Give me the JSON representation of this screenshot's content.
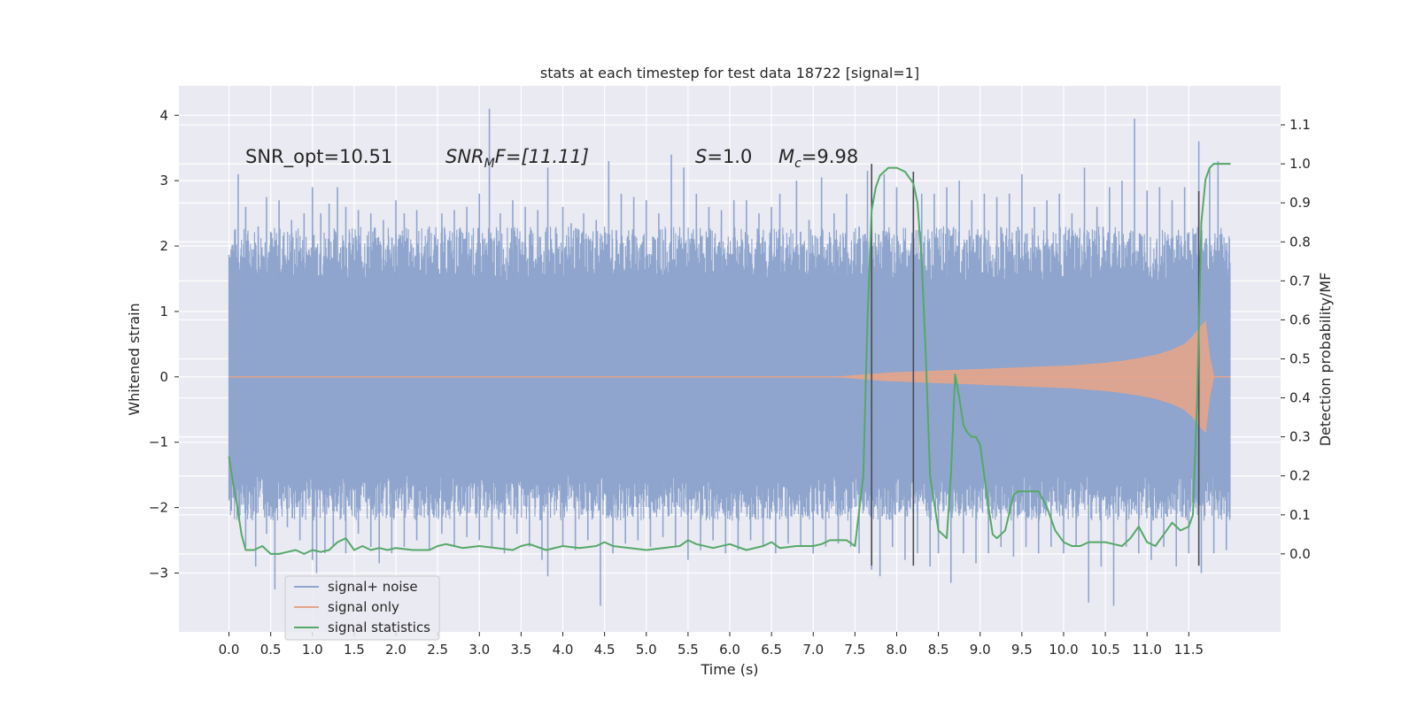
{
  "chart_data": {
    "type": "line",
    "title": "stats at each timestep for test data 18722 [signal=1]",
    "xlabel": "Time (s)",
    "ylabel_left": "Whitened strain",
    "ylabel_right": "Detection probability/MF",
    "xlim": [
      -0.6,
      12.6
    ],
    "ylim_left": [
      -3.9,
      4.45
    ],
    "ylim_right": [
      -0.2,
      1.2
    ],
    "x_ticks": [
      0.0,
      0.5,
      1.0,
      1.5,
      2.0,
      2.5,
      3.0,
      3.5,
      4.0,
      4.5,
      5.0,
      5.5,
      6.0,
      6.5,
      7.0,
      7.5,
      8.0,
      8.5,
      9.0,
      9.5,
      10.0,
      10.5,
      11.0,
      11.5
    ],
    "x_tick_labels": [
      "0.0",
      "0.5",
      "1.0",
      "1.5",
      "2.0",
      "2.5",
      "3.0",
      "3.5",
      "4.0",
      "4.5",
      "5.0",
      "5.5",
      "6.0",
      "6.5",
      "7.0",
      "7.5",
      "8.0",
      "8.5",
      "9.0",
      "9.5",
      "10.0",
      "10.5",
      "11.0",
      "11.5"
    ],
    "y_left_ticks": [
      -3,
      -2,
      -1,
      0,
      1,
      2,
      3,
      4
    ],
    "y_left_tick_labels": [
      "−3",
      "−2",
      "−1",
      "0",
      "1",
      "2",
      "3",
      "4"
    ],
    "y_right_ticks": [
      0.0,
      0.1,
      0.2,
      0.3,
      0.4,
      0.5,
      0.6,
      0.7,
      0.8,
      0.9,
      1.0,
      1.1
    ],
    "y_right_tick_labels": [
      "0.0",
      "0.1",
      "0.2",
      "0.3",
      "0.4",
      "0.5",
      "0.6",
      "0.7",
      "0.8",
      "0.9",
      "1.0",
      "1.1"
    ],
    "grid": true,
    "legend_position": "lower-left",
    "legend": [
      {
        "label": "signal+ noise",
        "color": "#8fa5cd"
      },
      {
        "label": "signal only",
        "color": "#e3a58c"
      },
      {
        "label": "signal statistics",
        "color": "#55a868"
      }
    ],
    "annotations": {
      "snr_opt": "SNR_opt=10.51",
      "snr_mf_label": "SNR",
      "snr_mf_sub": "M",
      "snr_mf_rest": "F=[11.11]",
      "s_label": "S",
      "s_value": "=1.0",
      "mc_label": "M",
      "mc_sub": "c",
      "mc_value": "=9.98"
    },
    "noise_series": {
      "name": "signal+ noise",
      "color": "#8fa5cd",
      "x_start": 0.0,
      "x_end": 12.0,
      "band_low": -1.5,
      "band_high": 1.45,
      "spikes_up": [
        [
          0.07,
          2.1
        ],
        [
          0.11,
          3.1
        ],
        [
          0.2,
          2.6
        ],
        [
          0.35,
          2.3
        ],
        [
          0.45,
          2.75
        ],
        [
          0.6,
          2.7
        ],
        [
          0.75,
          2.4
        ],
        [
          0.9,
          2.5
        ],
        [
          1.0,
          2.9
        ],
        [
          1.1,
          2.5
        ],
        [
          1.2,
          2.65
        ],
        [
          1.3,
          2.9
        ],
        [
          1.4,
          2.6
        ],
        [
          1.55,
          2.55
        ],
        [
          1.7,
          2.5
        ],
        [
          1.85,
          2.4
        ],
        [
          2.0,
          2.7
        ],
        [
          2.1,
          2.5
        ],
        [
          2.25,
          2.55
        ],
        [
          2.4,
          2.3
        ],
        [
          2.55,
          2.5
        ],
        [
          2.7,
          2.55
        ],
        [
          2.85,
          2.6
        ],
        [
          3.0,
          2.8
        ],
        [
          3.12,
          4.1
        ],
        [
          3.25,
          2.5
        ],
        [
          3.4,
          2.7
        ],
        [
          3.55,
          2.6
        ],
        [
          3.7,
          2.55
        ],
        [
          3.82,
          3.2
        ],
        [
          4.0,
          2.6
        ],
        [
          4.1,
          2.35
        ],
        [
          4.25,
          2.5
        ],
        [
          4.4,
          2.4
        ],
        [
          4.55,
          3.3
        ],
        [
          4.7,
          2.8
        ],
        [
          4.85,
          2.75
        ],
        [
          5.0,
          2.7
        ],
        [
          5.15,
          2.5
        ],
        [
          5.3,
          3.4
        ],
        [
          5.45,
          3.2
        ],
        [
          5.6,
          2.8
        ],
        [
          5.75,
          2.6
        ],
        [
          5.9,
          2.55
        ],
        [
          6.05,
          2.7
        ],
        [
          6.2,
          2.7
        ],
        [
          6.35,
          2.5
        ],
        [
          6.5,
          2.6
        ],
        [
          6.6,
          2.8
        ],
        [
          6.8,
          3.0
        ],
        [
          6.95,
          2.4
        ],
        [
          7.1,
          3.05
        ],
        [
          7.25,
          2.5
        ],
        [
          7.4,
          2.8
        ],
        [
          7.55,
          2.3
        ],
        [
          7.65,
          3.15
        ],
        [
          7.85,
          3.1
        ],
        [
          8.0,
          2.9
        ],
        [
          8.2,
          3.0
        ],
        [
          8.3,
          2.8
        ],
        [
          8.45,
          2.8
        ],
        [
          8.6,
          2.9
        ],
        [
          8.75,
          3.0
        ],
        [
          8.9,
          2.7
        ],
        [
          9.05,
          2.8
        ],
        [
          9.2,
          2.75
        ],
        [
          9.35,
          2.8
        ],
        [
          9.5,
          3.1
        ],
        [
          9.65,
          2.6
        ],
        [
          9.8,
          2.7
        ],
        [
          9.95,
          2.8
        ],
        [
          10.1,
          2.5
        ],
        [
          10.25,
          3.2
        ],
        [
          10.4,
          2.6
        ],
        [
          10.55,
          2.9
        ],
        [
          10.7,
          3.0
        ],
        [
          10.85,
          3.95
        ],
        [
          11.0,
          2.85
        ],
        [
          11.15,
          2.9
        ],
        [
          11.3,
          2.7
        ],
        [
          11.45,
          2.9
        ],
        [
          11.62,
          3.6
        ],
        [
          11.75,
          3.2
        ],
        [
          11.85,
          3.3
        ],
        [
          11.98,
          1.9
        ]
      ],
      "spikes_down": [
        [
          0.05,
          -1.85
        ],
        [
          0.12,
          -2.2
        ],
        [
          0.2,
          -2.6
        ],
        [
          0.32,
          -2.9
        ],
        [
          0.45,
          -2.4
        ],
        [
          0.55,
          -3.25
        ],
        [
          0.7,
          -2.3
        ],
        [
          0.85,
          -2.5
        ],
        [
          1.0,
          -2.8
        ],
        [
          1.05,
          -3.0
        ],
        [
          1.15,
          -2.7
        ],
        [
          1.25,
          -2.6
        ],
        [
          1.4,
          -2.7
        ],
        [
          1.55,
          -2.4
        ],
        [
          1.7,
          -2.6
        ],
        [
          1.8,
          -2.85
        ],
        [
          1.95,
          -2.7
        ],
        [
          2.1,
          -2.6
        ],
        [
          2.25,
          -2.5
        ],
        [
          2.4,
          -2.65
        ],
        [
          2.55,
          -2.4
        ],
        [
          2.7,
          -2.6
        ],
        [
          2.85,
          -2.45
        ],
        [
          3.0,
          -2.5
        ],
        [
          3.15,
          -2.6
        ],
        [
          3.3,
          -2.7
        ],
        [
          3.45,
          -2.4
        ],
        [
          3.6,
          -2.6
        ],
        [
          3.75,
          -2.8
        ],
        [
          3.82,
          -3.05
        ],
        [
          4.0,
          -2.6
        ],
        [
          4.15,
          -2.65
        ],
        [
          4.3,
          -2.5
        ],
        [
          4.45,
          -3.5
        ],
        [
          4.6,
          -2.7
        ],
        [
          4.75,
          -2.55
        ],
        [
          4.9,
          -2.5
        ],
        [
          5.05,
          -2.6
        ],
        [
          5.2,
          -2.45
        ],
        [
          5.35,
          -2.6
        ],
        [
          5.5,
          -2.8
        ],
        [
          5.65,
          -2.65
        ],
        [
          5.8,
          -2.5
        ],
        [
          5.95,
          -2.7
        ],
        [
          6.1,
          -2.65
        ],
        [
          6.25,
          -2.5
        ],
        [
          6.4,
          -2.6
        ],
        [
          6.55,
          -2.7
        ],
        [
          6.7,
          -2.55
        ],
        [
          6.85,
          -2.6
        ],
        [
          7.0,
          -2.7
        ],
        [
          7.15,
          -2.6
        ],
        [
          7.3,
          -2.55
        ],
        [
          7.45,
          -2.6
        ],
        [
          7.55,
          -2.7
        ],
        [
          7.7,
          -2.95
        ],
        [
          7.8,
          -3.05
        ],
        [
          7.95,
          -2.6
        ],
        [
          8.1,
          -2.8
        ],
        [
          8.25,
          -2.7
        ],
        [
          8.4,
          -2.9
        ],
        [
          8.5,
          -2.7
        ],
        [
          8.65,
          -3.15
        ],
        [
          8.8,
          -2.7
        ],
        [
          8.95,
          -2.85
        ],
        [
          9.1,
          -2.7
        ],
        [
          9.25,
          -2.6
        ],
        [
          9.4,
          -2.75
        ],
        [
          9.55,
          -2.6
        ],
        [
          9.7,
          -2.7
        ],
        [
          9.85,
          -2.6
        ],
        [
          10.0,
          -2.7
        ],
        [
          10.15,
          -2.6
        ],
        [
          10.3,
          -3.45
        ],
        [
          10.45,
          -2.9
        ],
        [
          10.6,
          -3.5
        ],
        [
          10.75,
          -2.6
        ],
        [
          10.9,
          -2.7
        ],
        [
          11.05,
          -2.8
        ],
        [
          11.2,
          -2.6
        ],
        [
          11.35,
          -2.9
        ],
        [
          11.5,
          -2.7
        ],
        [
          11.65,
          -3.0
        ],
        [
          11.8,
          -2.7
        ],
        [
          11.95,
          -2.65
        ]
      ]
    },
    "signal_series": {
      "name": "signal only",
      "color": "#e3a58c",
      "envelope": {
        "x": [
          7.3,
          7.5,
          7.7,
          7.9,
          8.1,
          8.3,
          8.5,
          8.7,
          8.9,
          9.1,
          9.3,
          9.5,
          9.7,
          9.9,
          10.1,
          10.3,
          10.5,
          10.7,
          10.9,
          11.1,
          11.3,
          11.45,
          11.55,
          11.65,
          11.7,
          11.75,
          11.8,
          11.9,
          12.0
        ],
        "amp": [
          0.0,
          0.02,
          0.04,
          0.06,
          0.07,
          0.08,
          0.09,
          0.1,
          0.11,
          0.12,
          0.13,
          0.14,
          0.15,
          0.16,
          0.17,
          0.19,
          0.21,
          0.24,
          0.28,
          0.33,
          0.41,
          0.5,
          0.62,
          0.78,
          0.85,
          0.3,
          0.0,
          0.0,
          0.0
        ]
      }
    },
    "statistics_series": {
      "name": "signal statistics",
      "color": "#55a868",
      "x": [
        0.0,
        0.05,
        0.1,
        0.15,
        0.2,
        0.3,
        0.4,
        0.5,
        0.6,
        0.7,
        0.8,
        0.9,
        1.0,
        1.1,
        1.2,
        1.3,
        1.4,
        1.5,
        1.6,
        1.7,
        1.8,
        1.9,
        2.0,
        2.2,
        2.4,
        2.5,
        2.6,
        2.7,
        2.8,
        3.0,
        3.2,
        3.4,
        3.5,
        3.6,
        3.8,
        4.0,
        4.2,
        4.4,
        4.5,
        4.6,
        4.8,
        5.0,
        5.2,
        5.4,
        5.5,
        5.6,
        5.8,
        6.0,
        6.2,
        6.4,
        6.5,
        6.6,
        6.8,
        7.0,
        7.1,
        7.2,
        7.4,
        7.5,
        7.6,
        7.65,
        7.7,
        7.75,
        7.8,
        7.9,
        8.0,
        8.1,
        8.2,
        8.25,
        8.3,
        8.35,
        8.4,
        8.5,
        8.6,
        8.65,
        8.7,
        8.75,
        8.8,
        8.85,
        8.9,
        8.95,
        9.0,
        9.05,
        9.1,
        9.15,
        9.2,
        9.3,
        9.4,
        9.45,
        9.5,
        9.6,
        9.7,
        9.8,
        9.9,
        10.0,
        10.1,
        10.2,
        10.3,
        10.5,
        10.6,
        10.7,
        10.8,
        10.9,
        11.0,
        11.1,
        11.2,
        11.3,
        11.4,
        11.5,
        11.55,
        11.6,
        11.65,
        11.7,
        11.75,
        11.8,
        11.9,
        12.0
      ],
      "values": [
        0.25,
        0.18,
        0.12,
        0.05,
        0.01,
        0.01,
        0.02,
        0.0,
        0.0,
        0.005,
        0.01,
        0.0,
        0.01,
        0.005,
        0.01,
        0.03,
        0.04,
        0.01,
        0.02,
        0.01,
        0.015,
        0.01,
        0.015,
        0.01,
        0.01,
        0.02,
        0.025,
        0.02,
        0.015,
        0.02,
        0.015,
        0.01,
        0.02,
        0.025,
        0.01,
        0.02,
        0.015,
        0.02,
        0.03,
        0.02,
        0.015,
        0.01,
        0.015,
        0.02,
        0.035,
        0.025,
        0.015,
        0.025,
        0.01,
        0.02,
        0.03,
        0.015,
        0.02,
        0.02,
        0.025,
        0.035,
        0.035,
        0.02,
        0.2,
        0.6,
        0.88,
        0.94,
        0.97,
        0.99,
        0.99,
        0.98,
        0.95,
        0.9,
        0.75,
        0.5,
        0.2,
        0.06,
        0.04,
        0.2,
        0.46,
        0.4,
        0.33,
        0.31,
        0.3,
        0.3,
        0.28,
        0.2,
        0.12,
        0.05,
        0.04,
        0.06,
        0.15,
        0.16,
        0.16,
        0.16,
        0.16,
        0.12,
        0.06,
        0.03,
        0.02,
        0.02,
        0.03,
        0.03,
        0.025,
        0.02,
        0.04,
        0.07,
        0.03,
        0.02,
        0.05,
        0.08,
        0.06,
        0.07,
        0.1,
        0.4,
        0.85,
        0.96,
        0.99,
        1.0,
        1.0,
        1.0
      ]
    },
    "vertical_markers": [
      {
        "x": 7.7,
        "y_top": 1.0,
        "y_bottom": -0.03
      },
      {
        "x": 8.2,
        "y_top": 0.98,
        "y_bottom": -0.03
      },
      {
        "x": 11.62,
        "y_top": 0.93,
        "y_bottom": -0.03
      }
    ]
  }
}
